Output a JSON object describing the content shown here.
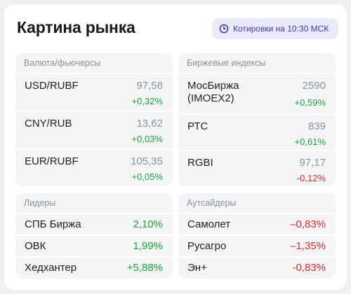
{
  "header": {
    "title": "Картина рынка",
    "quote_time": "Котировки на 10:30 МСК"
  },
  "currencies": {
    "title": "Валюта/фьючерсы",
    "items": [
      {
        "name": "USD/RUBF",
        "price": "97,58",
        "change": "+0,32%"
      },
      {
        "name": "CNY/RUB",
        "price": "13,62",
        "change": "+0,03%"
      },
      {
        "name": "EUR/RUBF",
        "price": "105,35",
        "change": "+0,05%"
      }
    ]
  },
  "indices": {
    "title": "Биржевые индексы",
    "items": [
      {
        "name": "МосБиржа (IMOEX2)",
        "price": "2590",
        "change": "+0,59%"
      },
      {
        "name": "РТС",
        "price": "839",
        "change": "+0,61%"
      },
      {
        "name": "RGBI",
        "price": "97,17",
        "change": "-0,12%"
      }
    ]
  },
  "leaders": {
    "title": "Лидеры",
    "items": [
      {
        "name": "СПБ Биржа",
        "change": "2,10%"
      },
      {
        "name": "ОВК",
        "change": "1,99%"
      },
      {
        "name": "Хедхантер",
        "change": "+5,88%"
      }
    ]
  },
  "outsiders": {
    "title": "Аутсайдеры",
    "items": [
      {
        "name": "Самолет",
        "change": "–0,83%"
      },
      {
        "name": "Русагро",
        "change": "–1,35%"
      },
      {
        "name": "Эн+",
        "change": "-0,83%"
      }
    ]
  },
  "colors": {
    "positive": "#1aa33d",
    "negative": "#e02b2b",
    "accent": "#3c3aa8"
  }
}
